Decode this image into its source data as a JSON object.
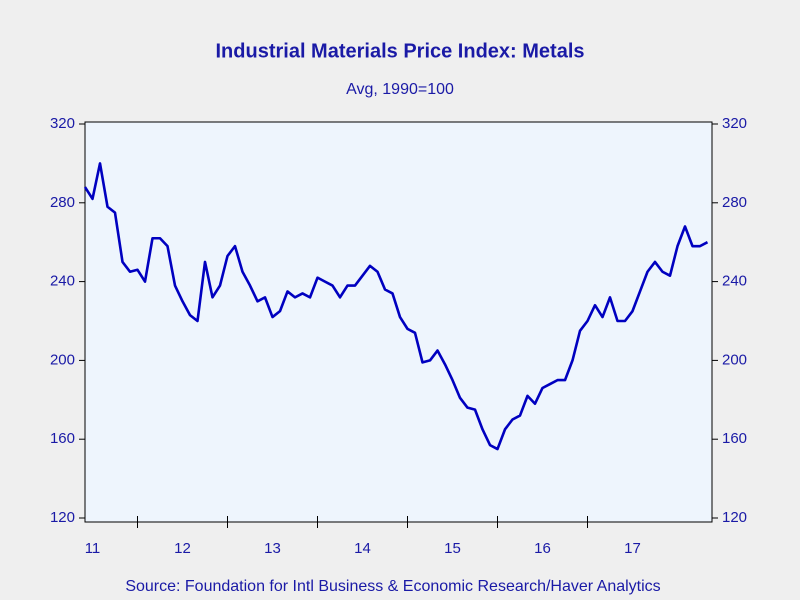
{
  "chart_data": {
    "type": "line",
    "title": "Industrial Materials Price Index: Metals",
    "subtitle": "Avg, 1990=100",
    "source": "Source:  Foundation for Intl Business & Economic Research/Haver Analytics",
    "color": "#0000c0",
    "categories": [
      null,
      "11",
      null,
      null,
      null,
      null,
      null,
      null,
      null,
      null,
      null,
      null,
      null,
      "12",
      null,
      null,
      null,
      null,
      null,
      null,
      null,
      null,
      null,
      null,
      null,
      "13",
      null,
      null,
      null,
      null,
      null,
      null,
      null,
      null,
      null,
      null,
      null,
      "14",
      null,
      null,
      null,
      null,
      null,
      null,
      null,
      null,
      null,
      null,
      null,
      "15",
      null,
      null,
      null,
      null,
      null,
      null,
      null,
      null,
      null,
      null,
      null,
      "16",
      null,
      null,
      null,
      null,
      null,
      null,
      null,
      null,
      null,
      null,
      null,
      "17",
      null,
      null,
      null,
      null,
      null,
      null,
      null,
      null,
      null,
      null
    ],
    "values": [
      288,
      282,
      300,
      278,
      275,
      250,
      245,
      246,
      240,
      262,
      262,
      258,
      238,
      230,
      223,
      220,
      250,
      232,
      238,
      253,
      258,
      245,
      238,
      230,
      232,
      222,
      225,
      235,
      232,
      234,
      232,
      242,
      240,
      238,
      232,
      238,
      238,
      243,
      248,
      245,
      236,
      234,
      222,
      216,
      214,
      199,
      200,
      205,
      198,
      190,
      181,
      176,
      175,
      165,
      157,
      155,
      165,
      170,
      172,
      182,
      178,
      186,
      188,
      190,
      190,
      200,
      215,
      220,
      228,
      222,
      232,
      220,
      220,
      225,
      235,
      245,
      250,
      245,
      243,
      258,
      268,
      258,
      258,
      260
    ],
    "ylim": [
      120,
      320
    ],
    "yticks": [
      120,
      160,
      200,
      240,
      280,
      320
    ],
    "y2lim": [
      120,
      320
    ],
    "y2ticks": [
      120,
      160,
      200,
      240,
      280,
      320
    ]
  }
}
